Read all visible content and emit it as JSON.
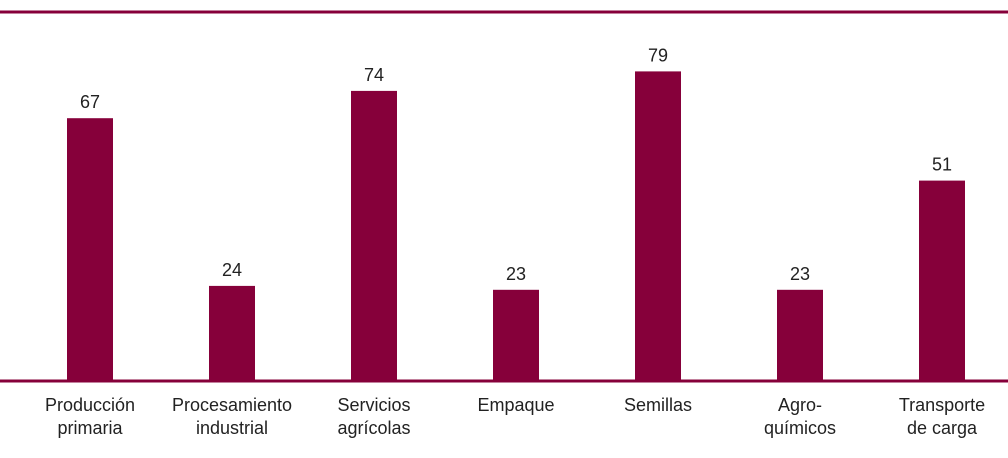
{
  "colors": {
    "bar": "#86003a",
    "rule": "#86003a",
    "text": "#222222"
  },
  "chart_data": {
    "type": "bar",
    "title": "",
    "xlabel": "",
    "ylabel": "",
    "ylim": [
      0,
      85
    ],
    "grid": false,
    "legend": "none",
    "categories": [
      [
        "Producción",
        "primaria"
      ],
      [
        "Procesamiento",
        "industrial"
      ],
      [
        "Servicios",
        "agrícolas"
      ],
      [
        "Empaque"
      ],
      [
        "Semillas"
      ],
      [
        "Agro-",
        "químicos"
      ],
      [
        "Transporte",
        "de carga"
      ]
    ],
    "values": [
      67,
      24,
      74,
      23,
      79,
      23,
      51
    ]
  }
}
